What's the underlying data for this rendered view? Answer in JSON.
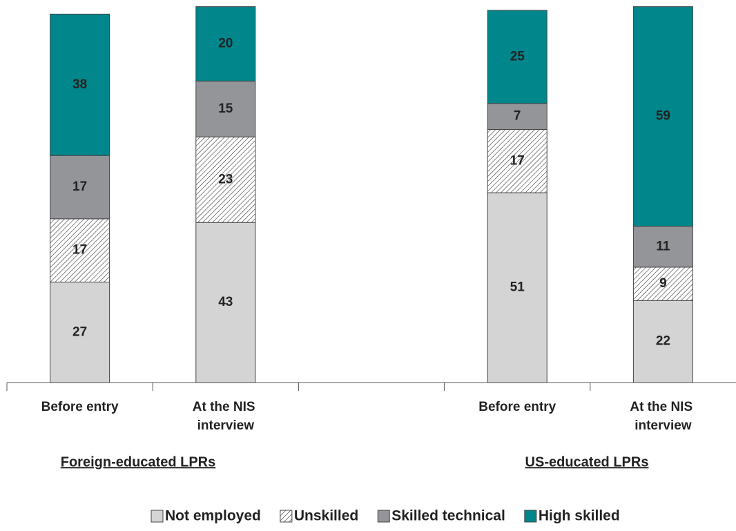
{
  "chart_data": {
    "type": "stacked-bar",
    "categories": [
      "Before entry",
      "At the NIS interview",
      null,
      "Before entry",
      "At the NIS interview"
    ],
    "groups": [
      "Foreign-educated LPRs",
      "US-educated LPRs"
    ],
    "series": [
      {
        "name": "Not employed",
        "color": "#d4d4d4",
        "values": [
          27,
          43,
          null,
          51,
          22
        ]
      },
      {
        "name": "Unskilled",
        "color": "#ffffff",
        "pattern": "hatch",
        "values": [
          17,
          23,
          null,
          17,
          9
        ]
      },
      {
        "name": "Skilled technical",
        "color": "#939598",
        "values": [
          17,
          15,
          null,
          7,
          11
        ]
      },
      {
        "name": "High skilled",
        "color": "#00868b",
        "values": [
          38,
          20,
          null,
          25,
          59
        ]
      }
    ],
    "ylim": [
      0,
      100
    ]
  }
}
